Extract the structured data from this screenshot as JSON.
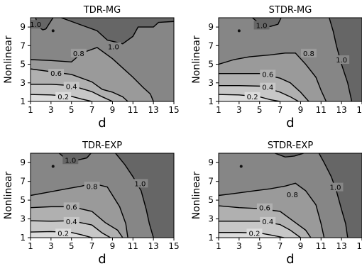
{
  "chart_data": [
    {
      "type": "contour",
      "title": "TDR-MG",
      "xlabel": "d",
      "ylabel": "Nonlinear",
      "xlim": [
        1,
        15
      ],
      "ylim": [
        1,
        10
      ],
      "xticks": [
        "1",
        "3",
        "5",
        "7",
        "9",
        "11",
        "13",
        "15"
      ],
      "yticks": [
        "1",
        "3",
        "5",
        "7",
        "9"
      ],
      "levels": [
        {
          "level": 0.2,
          "label": "0.2",
          "x": [
            1,
            3,
            5,
            6,
            7
          ],
          "y": [
            1.75,
            1.7,
            1.55,
            1.25,
            1.0
          ],
          "lx": 4.2,
          "ly": 1.55
        },
        {
          "level": 0.4,
          "label": "0.4",
          "x": [
            1,
            3,
            5,
            7,
            8,
            9
          ],
          "y": [
            2.85,
            2.85,
            2.7,
            2.05,
            1.5,
            1.0
          ],
          "lx": 5.0,
          "ly": 2.65
        },
        {
          "level": 0.6,
          "label": "0.6",
          "x": [
            1,
            3,
            5,
            7,
            8,
            9,
            10,
            10.5
          ],
          "y": [
            4.5,
            4.2,
            3.9,
            3.1,
            2.3,
            2.0,
            1.5,
            1.0
          ],
          "lx": 3.5,
          "ly": 4.05
        },
        {
          "level": 0.8,
          "label": "0.8",
          "x": [
            1,
            3,
            5,
            6,
            7.5,
            9,
            10,
            11,
            12,
            12.7,
            13
          ],
          "y": [
            5.5,
            5.4,
            5.25,
            6.2,
            6.8,
            5.6,
            4.6,
            3.6,
            2.5,
            1.8,
            1.0
          ],
          "lx": 5.7,
          "ly": 6.2
        },
        {
          "level": 1.0,
          "label": "1.0",
          "x": [
            4,
            5,
            6.5,
            7.5,
            8.5,
            10,
            11,
            11.5,
            13,
            13.5,
            15
          ],
          "y": [
            10,
            9.6,
            9.0,
            8.6,
            7.6,
            7.2,
            8.0,
            9.0,
            9.0,
            9.5,
            9.6
          ],
          "lx": 9.1,
          "ly": 6.9
        },
        {
          "level": 1.0,
          "label": "1.0",
          "x": [
            1.5,
            1.7,
            2.2,
            2.5,
            3.2
          ],
          "y": [
            10,
            9.1,
            8.7,
            8.8,
            10
          ],
          "lx": 1.5,
          "ly": 9.3
        }
      ]
    },
    {
      "type": "contour",
      "title": "STDR-MG",
      "xlabel": "d",
      "ylabel": "Nonlinear",
      "xlim": [
        1,
        15
      ],
      "ylim": [
        1,
        10
      ],
      "xticks": [
        "1",
        "3",
        "5",
        "7",
        "9",
        "11",
        "13",
        "15"
      ],
      "yticks": [
        "1",
        "3",
        "5",
        "7",
        "9"
      ],
      "levels": [
        {
          "level": 0.2,
          "label": "0.2",
          "x": [
            1,
            3,
            5,
            6,
            7
          ],
          "y": [
            1.75,
            1.7,
            1.5,
            1.2,
            1.0
          ],
          "lx": 4.3,
          "ly": 1.55
        },
        {
          "level": 0.4,
          "label": "0.4",
          "x": [
            1,
            3,
            5,
            7,
            8,
            8.8
          ],
          "y": [
            2.7,
            2.7,
            2.65,
            2.0,
            1.5,
            1.0
          ],
          "lx": 5.8,
          "ly": 2.55
        },
        {
          "level": 0.6,
          "label": "0.6",
          "x": [
            1,
            3,
            5,
            7,
            8,
            9,
            9.8
          ],
          "y": [
            4.0,
            4.0,
            4.0,
            3.5,
            3.0,
            2.0,
            1.0
          ],
          "lx": 5.8,
          "ly": 3.95
        },
        {
          "level": 0.8,
          "label": "0.8",
          "x": [
            1,
            2.5,
            4,
            6,
            7.5,
            8.5,
            9.5,
            10.5,
            11,
            11.5
          ],
          "y": [
            5.0,
            5.5,
            5.8,
            6.0,
            6.2,
            6.2,
            5.0,
            3.6,
            2.2,
            1.0
          ],
          "lx": 9.8,
          "ly": 6.2
        },
        {
          "level": 1.0,
          "label": "1.0",
          "x": [
            11.8,
            12.2,
            12.5,
            13,
            13.6,
            14
          ],
          "y": [
            10,
            8.5,
            7.0,
            5.0,
            3.0,
            1.0
          ],
          "lx": 13.0,
          "ly": 5.5
        },
        {
          "level": 1.0,
          "label": "1.0",
          "x": [
            4.3,
            5,
            6,
            6.8,
            7.1
          ],
          "y": [
            10,
            9.35,
            9.05,
            9.3,
            10
          ],
          "lx": 5.2,
          "ly": 9.2
        }
      ]
    },
    {
      "type": "contour",
      "title": "TDR-EXP",
      "xlabel": "d",
      "ylabel": "Nonlinear",
      "xlim": [
        1,
        15
      ],
      "ylim": [
        1,
        10
      ],
      "xticks": [
        "1",
        "3",
        "5",
        "7",
        "9",
        "11",
        "13",
        "15"
      ],
      "yticks": [
        "1",
        "3",
        "5",
        "7",
        "9"
      ],
      "levels": [
        {
          "level": 0.2,
          "label": "0.2",
          "x": [
            1,
            3,
            5,
            6,
            7
          ],
          "y": [
            1.6,
            1.65,
            1.55,
            1.3,
            1.0
          ],
          "lx": 4.2,
          "ly": 1.5
        },
        {
          "level": 0.4,
          "label": "0.4",
          "x": [
            1,
            3,
            5,
            7,
            8,
            8.8
          ],
          "y": [
            2.8,
            2.75,
            2.8,
            2.35,
            1.5,
            1.0
          ],
          "lx": 5.0,
          "ly": 2.75
        },
        {
          "level": 0.6,
          "label": "0.6",
          "x": [
            1,
            3,
            5,
            7,
            8.3,
            9.5,
            10
          ],
          "y": [
            4.2,
            4.3,
            4.3,
            3.8,
            2.6,
            1.8,
            1.0
          ],
          "lx": 5.0,
          "ly": 4.3
        },
        {
          "level": 0.8,
          "label": "0.8",
          "x": [
            1,
            2.5,
            4.5,
            6,
            7,
            8.5,
            9.7,
            10.3,
            10.5
          ],
          "y": [
            5.5,
            5.8,
            6.2,
            6.5,
            6.8,
            6.4,
            4.3,
            2.5,
            1.0
          ],
          "lx": 7.0,
          "ly": 6.5
        },
        {
          "level": 1.0,
          "label": "1.0",
          "x": [
            9.3,
            10.2,
            11,
            11.8,
            12.3,
            12.6,
            13
          ],
          "y": [
            10,
            8.8,
            7.5,
            6.0,
            4.0,
            2.5,
            1.0
          ],
          "lx": 11.7,
          "ly": 6.8
        },
        {
          "level": 1.0,
          "label": "1.0",
          "x": [
            3.8,
            4.5,
            5.5,
            6.5,
            6.9
          ],
          "y": [
            10,
            9.35,
            9.25,
            9.5,
            10
          ],
          "lx": 4.9,
          "ly": 9.3
        }
      ]
    },
    {
      "type": "contour",
      "title": "STDR-EXP",
      "xlabel": "d",
      "ylabel": "Nonlinear",
      "xlim": [
        1,
        15
      ],
      "ylim": [
        1,
        10
      ],
      "xticks": [
        "1",
        "3",
        "5",
        "7",
        "9",
        "11",
        "13",
        "15"
      ],
      "yticks": [
        "1",
        "3",
        "5",
        "7",
        "9"
      ],
      "levels": [
        {
          "level": 0.2,
          "label": "0.2",
          "x": [
            1,
            3,
            5,
            6,
            7.4
          ],
          "y": [
            1.55,
            1.55,
            1.5,
            1.3,
            1.0
          ],
          "lx": 4.5,
          "ly": 1.5
        },
        {
          "level": 0.4,
          "label": "0.4",
          "x": [
            1,
            3,
            5,
            7,
            8,
            9
          ],
          "y": [
            2.75,
            2.75,
            2.75,
            2.4,
            1.8,
            1.0
          ],
          "lx": 5.8,
          "ly": 2.75
        },
        {
          "level": 0.6,
          "label": "0.6",
          "x": [
            1,
            3,
            5,
            7,
            8.5,
            9.5,
            10
          ],
          "y": [
            4.4,
            4.2,
            4.1,
            3.8,
            2.6,
            1.8,
            1.0
          ],
          "lx": 5.5,
          "ly": 4.2
        },
        {
          "level": 0.8,
          "label": "0.8",
          "x": [
            1,
            2.5,
            4.5,
            6,
            7.5,
            8.5,
            9.5,
            10.5,
            11,
            11.3
          ],
          "y": [
            5.5,
            5.7,
            6.0,
            6.2,
            6.5,
            6.8,
            6.0,
            4.5,
            2.5,
            1.0
          ],
          "lx": 8.2,
          "ly": 5.6
        },
        {
          "level": 1.0,
          "label": "1.0",
          "x": [
            10.8,
            11.3,
            12,
            12.5,
            13,
            13.4,
            13.6
          ],
          "y": [
            10,
            9.0,
            7.5,
            6.0,
            4.0,
            2.5,
            1.0
          ],
          "lx": 12.4,
          "ly": 6.4
        },
        {
          "level": 1.0,
          "label": "1.0",
          "x": [
            6.5,
            7.5,
            8.4,
            9.0,
            9.3
          ],
          "y": [
            10,
            9.6,
            9.7,
            9.9,
            10
          ]
        }
      ]
    }
  ],
  "colors": {
    "fills": [
      "#dcdcdc",
      "#c7c7c7",
      "#b0b0b0",
      "#9a9a9a",
      "#868686",
      "#666666"
    ],
    "line": "#000000",
    "text": "#000000"
  }
}
